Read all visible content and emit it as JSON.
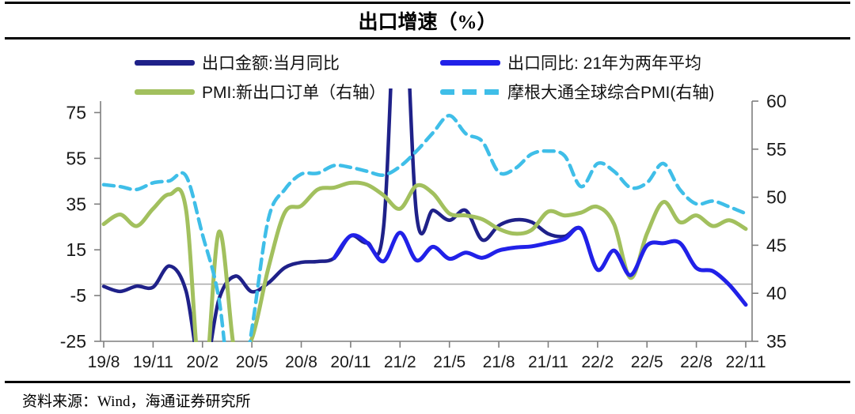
{
  "title": "出口增速（%）",
  "source": "资料来源：Wind，海通证券研究所",
  "legend": [
    {
      "label": "出口金额:当月同比",
      "color": "#1F2189",
      "dash": false
    },
    {
      "label": "出口同比: 21年为两年平均",
      "color": "#2121E8",
      "dash": false
    },
    {
      "label": "PMI:新出口订单（右轴）",
      "color": "#A2C05E",
      "dash": false
    },
    {
      "label": "摩根大通全球综合PMI(右轴)",
      "color": "#3FBEE8",
      "dash": true
    }
  ],
  "chart_data": {
    "type": "line",
    "title": "出口增速（%）",
    "axis_color": "#7F7F7F",
    "zero_line_color": "#A9A9A9",
    "grid": false,
    "legend_position": "top",
    "months": [
      "19/8",
      "19/9",
      "19/10",
      "19/11",
      "19/12",
      "20/1",
      "20/2",
      "20/3",
      "20/4",
      "20/5",
      "20/6",
      "20/7",
      "20/8",
      "20/9",
      "20/10",
      "20/11",
      "20/12",
      "21/1",
      "21/2",
      "21/3",
      "21/4",
      "21/5",
      "21/6",
      "21/7",
      "21/8",
      "21/9",
      "21/10",
      "21/11",
      "21/12",
      "22/1",
      "22/2",
      "22/3",
      "22/4",
      "22/5",
      "22/6",
      "22/7",
      "22/8",
      "22/9",
      "22/10",
      "22/11"
    ],
    "x_tick_labels": [
      "19/8",
      "19/11",
      "20/2",
      "20/5",
      "20/8",
      "20/11",
      "21/2",
      "21/5",
      "21/8",
      "21/11",
      "22/2",
      "22/5",
      "22/8",
      "22/11"
    ],
    "left_axis": {
      "ticks": [
        -25,
        -5,
        15,
        35,
        55,
        75
      ],
      "min": -25,
      "max": 80
    },
    "right_axis": {
      "ticks": [
        35,
        40,
        45,
        50,
        55,
        60
      ],
      "min": 35,
      "max": 60
    },
    "zero_line": true,
    "series": [
      {
        "name": "出口金额:当月同比",
        "axis": "left",
        "color": "#1F2189",
        "style": "solid",
        "width": 4.5,
        "values": [
          -1.0,
          -3.2,
          -0.9,
          -1.3,
          7.9,
          -3.0,
          -40.6,
          -6.6,
          3.5,
          -3.3,
          0.5,
          7.2,
          9.5,
          9.9,
          11.4,
          21.1,
          18.1,
          24.8,
          154.9,
          30.6,
          32.3,
          27.9,
          32.2,
          19.3,
          25.6,
          28.1,
          27.1,
          22.0,
          20.9,
          24.1,
          6.3,
          14.7,
          3.9,
          16.9,
          17.9,
          18.0,
          7.1,
          5.7,
          -0.3,
          -9.0
        ]
      },
      {
        "name": "PMI:新出口订单（右轴）",
        "axis": "right",
        "color": "#A2C05E",
        "style": "solid",
        "width": 5,
        "values": [
          47.2,
          48.2,
          47.0,
          48.8,
          50.3,
          48.7,
          28.7,
          46.4,
          33.5,
          35.3,
          42.6,
          48.4,
          49.1,
          50.8,
          51.0,
          51.5,
          51.3,
          50.2,
          48.8,
          51.2,
          50.4,
          48.3,
          48.1,
          47.7,
          46.7,
          46.2,
          46.6,
          48.5,
          48.1,
          48.4,
          49.0,
          47.2,
          41.6,
          46.2,
          49.5,
          47.4,
          48.1,
          47.0,
          47.6,
          46.7
        ]
      },
      {
        "name": "摩根大通全球综合PMI(右轴)",
        "axis": "right",
        "color": "#3FBEE8",
        "style": "dashed",
        "width": 4.5,
        "values": [
          51.3,
          51.1,
          50.8,
          51.5,
          51.7,
          52.2,
          46.1,
          39.4,
          26.5,
          36.3,
          47.7,
          50.8,
          52.4,
          52.5,
          53.3,
          53.1,
          52.7,
          52.3,
          53.2,
          54.8,
          56.7,
          58.5,
          56.6,
          55.8,
          52.6,
          53.0,
          54.5,
          54.8,
          54.3,
          51.1,
          53.5,
          52.7,
          51.0,
          51.5,
          53.5,
          50.8,
          49.3,
          49.6,
          49.0,
          48.3
        ]
      },
      {
        "name": "出口同比: 21年为两年平均",
        "axis": "left",
        "color": "#2121E8",
        "style": "solid",
        "width": 5,
        "values": [
          null,
          null,
          null,
          null,
          null,
          null,
          null,
          null,
          null,
          null,
          null,
          null,
          null,
          null,
          11.4,
          21.1,
          18.1,
          10.0,
          22.5,
          10.4,
          16.3,
          11.1,
          13.8,
          11.5,
          14.7,
          16.0,
          16.5,
          18.0,
          19.8,
          24.1,
          6.3,
          14.7,
          3.9,
          16.9,
          17.9,
          18.0,
          7.1,
          5.7,
          -0.3,
          -9.0
        ]
      }
    ]
  }
}
